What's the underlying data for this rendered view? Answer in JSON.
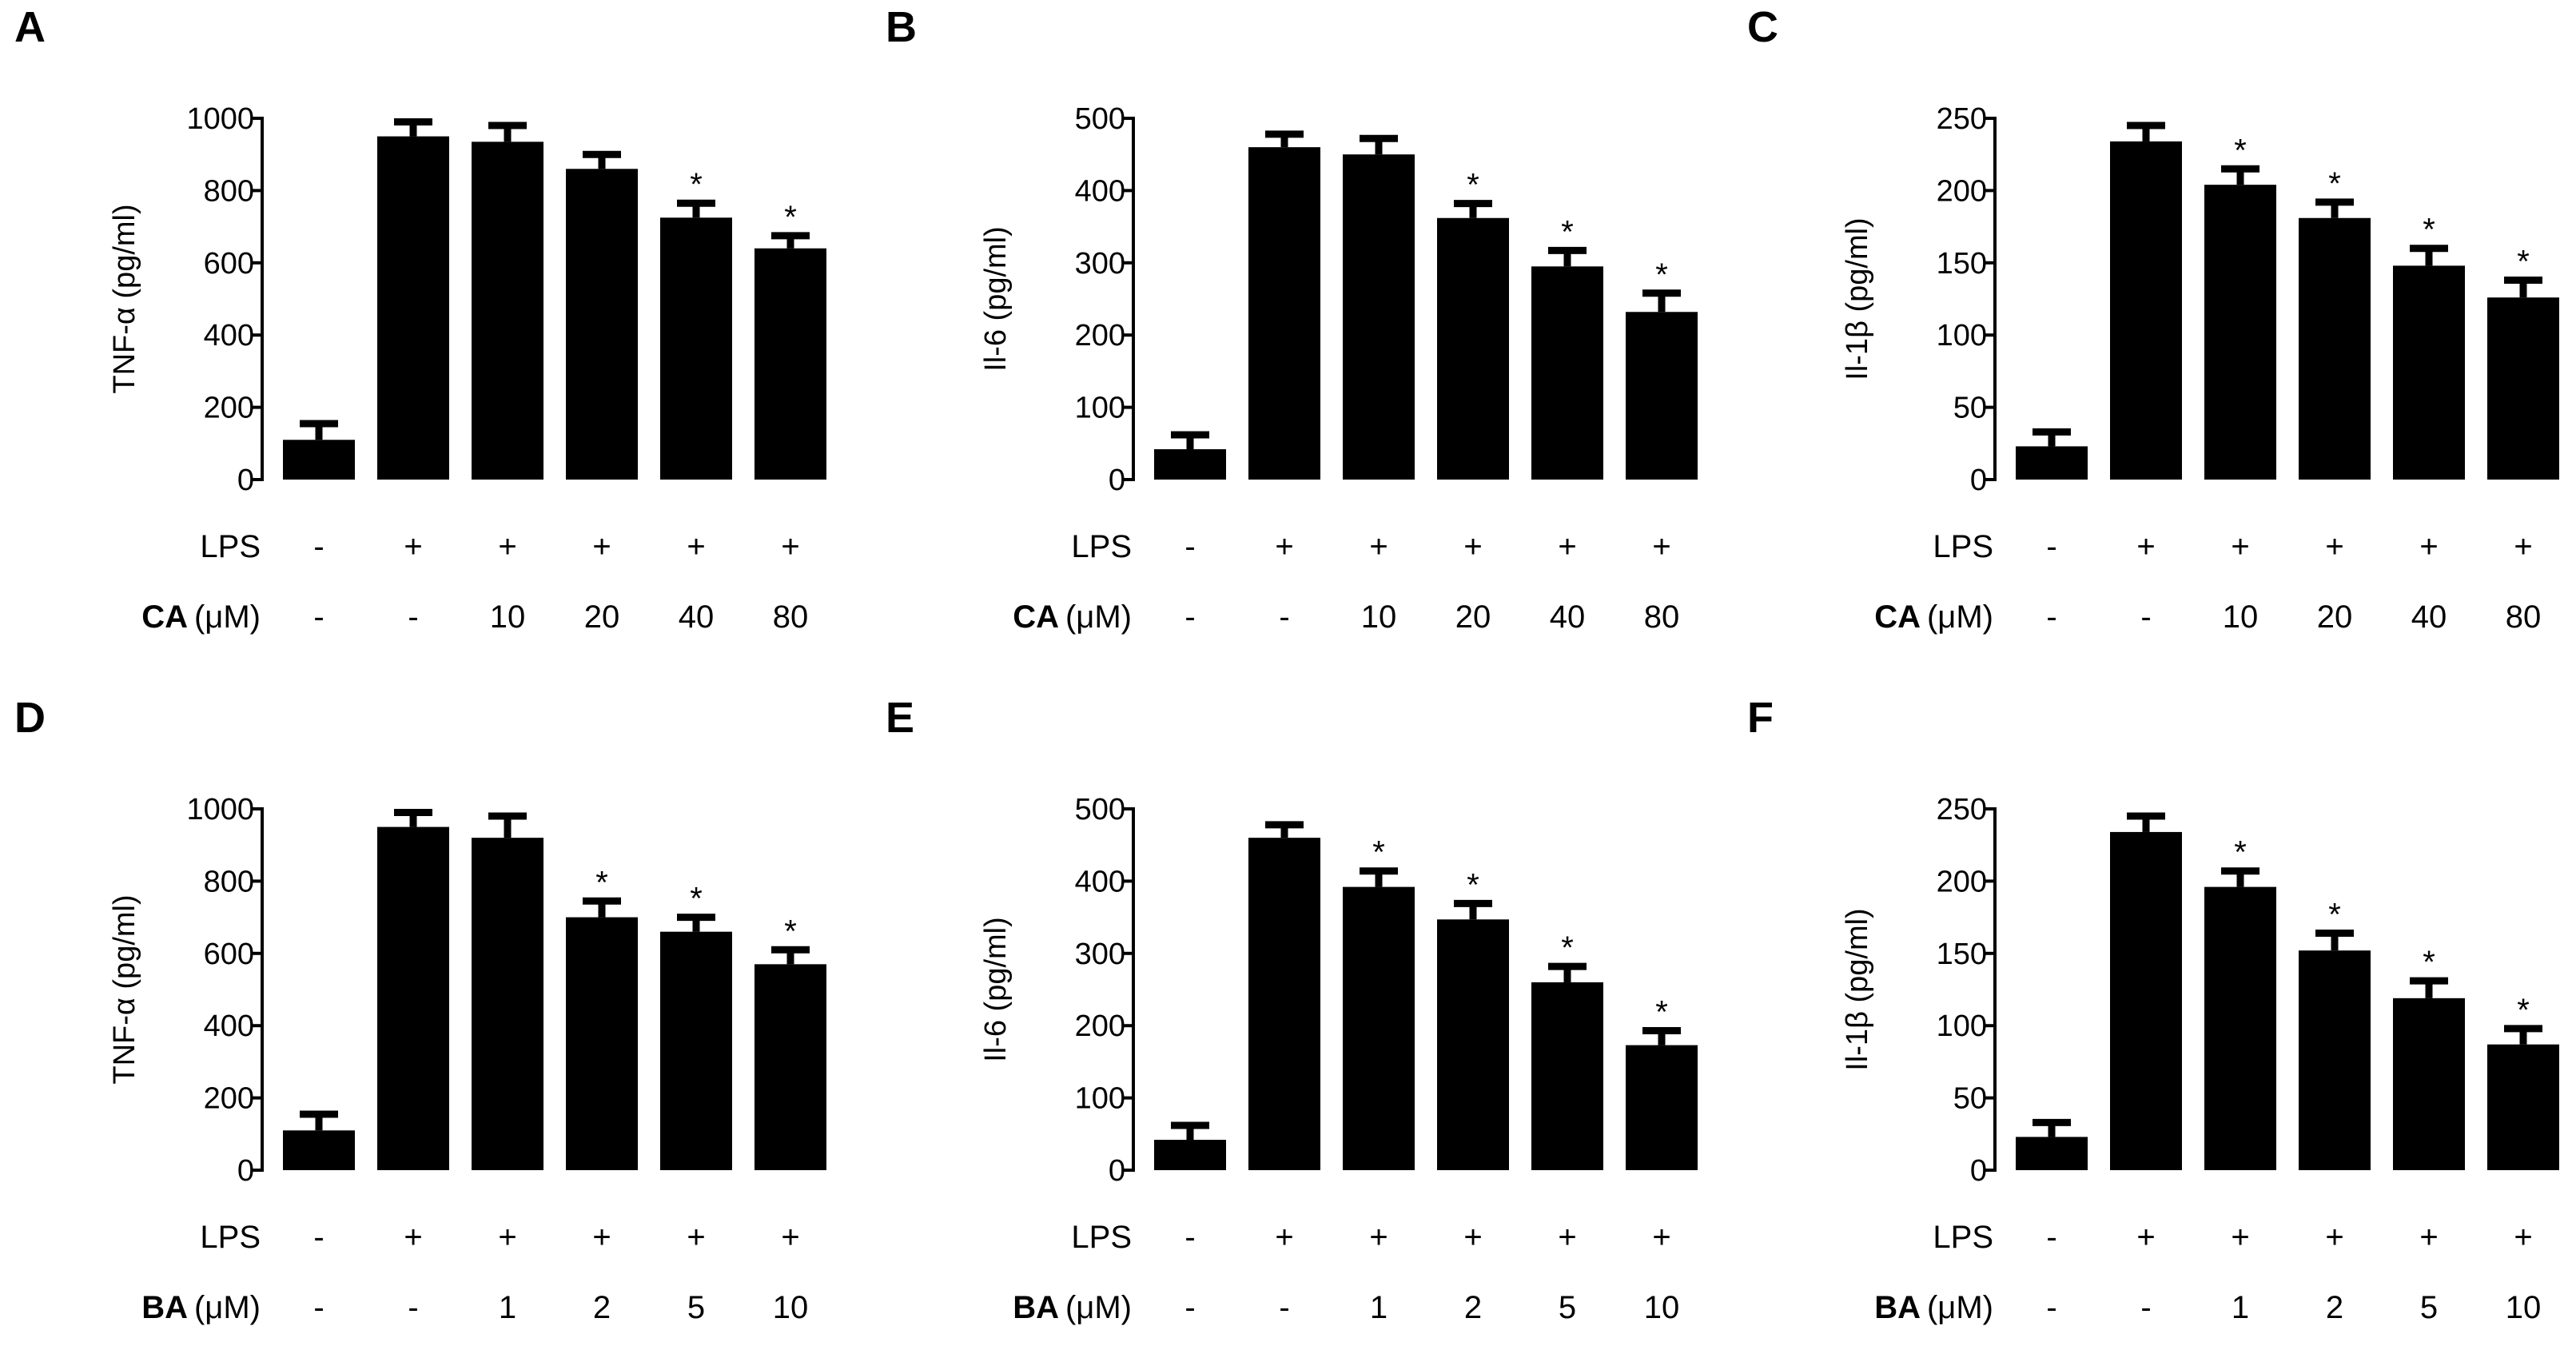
{
  "chart_data": [
    {
      "panel": "A",
      "type": "bar",
      "ylabel": "TNF-α (pg/ml)",
      "ylim": [
        0,
        1000
      ],
      "yticks": [
        0,
        200,
        400,
        600,
        800,
        1000
      ],
      "values": [
        110,
        950,
        935,
        860,
        725,
        640
      ],
      "errors": [
        45,
        40,
        45,
        40,
        40,
        35
      ],
      "significant": [
        false,
        false,
        false,
        false,
        true,
        true
      ],
      "significance_marker": "*",
      "rows": [
        {
          "label": "LPS",
          "unit": "",
          "cells": [
            "-",
            "+",
            "+",
            "+",
            "+",
            "+"
          ]
        },
        {
          "label": "CA",
          "unit": "(μM)",
          "cells": [
            "-",
            "-",
            "10",
            "20",
            "40",
            "80"
          ]
        }
      ]
    },
    {
      "panel": "B",
      "type": "bar",
      "ylabel": "Il-6 (pg/ml)",
      "ylim": [
        0,
        500
      ],
      "yticks": [
        0,
        100,
        200,
        300,
        400,
        500
      ],
      "values": [
        42,
        460,
        450,
        362,
        295,
        232
      ],
      "errors": [
        20,
        18,
        22,
        20,
        22,
        26
      ],
      "significant": [
        false,
        false,
        false,
        true,
        true,
        true
      ],
      "significance_marker": "*",
      "rows": [
        {
          "label": "LPS",
          "unit": "",
          "cells": [
            "-",
            "+",
            "+",
            "+",
            "+",
            "+"
          ]
        },
        {
          "label": "CA",
          "unit": "(μM)",
          "cells": [
            "-",
            "-",
            "10",
            "20",
            "40",
            "80"
          ]
        }
      ]
    },
    {
      "panel": "C",
      "type": "bar",
      "ylabel": "Il-1β (pg/ml)",
      "ylim": [
        0,
        250
      ],
      "yticks": [
        0,
        50,
        100,
        150,
        200,
        250
      ],
      "values": [
        23,
        234,
        204,
        181,
        148,
        126
      ],
      "errors": [
        10,
        11,
        11,
        11,
        12,
        12
      ],
      "significant": [
        false,
        false,
        true,
        true,
        true,
        true
      ],
      "significance_marker": "*",
      "rows": [
        {
          "label": "LPS",
          "unit": "",
          "cells": [
            "-",
            "+",
            "+",
            "+",
            "+",
            "+"
          ]
        },
        {
          "label": "CA",
          "unit": "(μM)",
          "cells": [
            "-",
            "-",
            "10",
            "20",
            "40",
            "80"
          ]
        }
      ]
    },
    {
      "panel": "D",
      "type": "bar",
      "ylabel": "TNF-α (pg/ml)",
      "ylim": [
        0,
        1000
      ],
      "yticks": [
        0,
        200,
        400,
        600,
        800,
        1000
      ],
      "values": [
        110,
        950,
        920,
        700,
        660,
        570
      ],
      "errors": [
        45,
        40,
        60,
        45,
        40,
        40
      ],
      "significant": [
        false,
        false,
        false,
        true,
        true,
        true
      ],
      "significance_marker": "*",
      "rows": [
        {
          "label": "LPS",
          "unit": "",
          "cells": [
            "-",
            "+",
            "+",
            "+",
            "+",
            "+"
          ]
        },
        {
          "label": "BA",
          "unit": "(μM)",
          "cells": [
            "-",
            "-",
            "1",
            "2",
            "5",
            "10"
          ]
        }
      ]
    },
    {
      "panel": "E",
      "type": "bar",
      "ylabel": "Il-6 (pg/ml)",
      "ylim": [
        0,
        500
      ],
      "yticks": [
        0,
        100,
        200,
        300,
        400,
        500
      ],
      "values": [
        42,
        460,
        392,
        347,
        260,
        173
      ],
      "errors": [
        20,
        18,
        22,
        22,
        22,
        20
      ],
      "significant": [
        false,
        false,
        true,
        true,
        true,
        true
      ],
      "significance_marker": "*",
      "rows": [
        {
          "label": "LPS",
          "unit": "",
          "cells": [
            "-",
            "+",
            "+",
            "+",
            "+",
            "+"
          ]
        },
        {
          "label": "BA",
          "unit": "(μM)",
          "cells": [
            "-",
            "-",
            "1",
            "2",
            "5",
            "10"
          ]
        }
      ]
    },
    {
      "panel": "F",
      "type": "bar",
      "ylabel": "Il-1β (pg/ml)",
      "ylim": [
        0,
        250
      ],
      "yticks": [
        0,
        50,
        100,
        150,
        200,
        250
      ],
      "values": [
        23,
        234,
        196,
        152,
        119,
        87
      ],
      "errors": [
        10,
        11,
        11,
        12,
        12,
        11
      ],
      "significant": [
        false,
        false,
        true,
        true,
        true,
        true
      ],
      "significance_marker": "*",
      "rows": [
        {
          "label": "LPS",
          "unit": "",
          "cells": [
            "-",
            "+",
            "+",
            "+",
            "+",
            "+"
          ]
        },
        {
          "label": "BA",
          "unit": "(μM)",
          "cells": [
            "-",
            "-",
            "1",
            "2",
            "5",
            "10"
          ]
        }
      ]
    }
  ]
}
